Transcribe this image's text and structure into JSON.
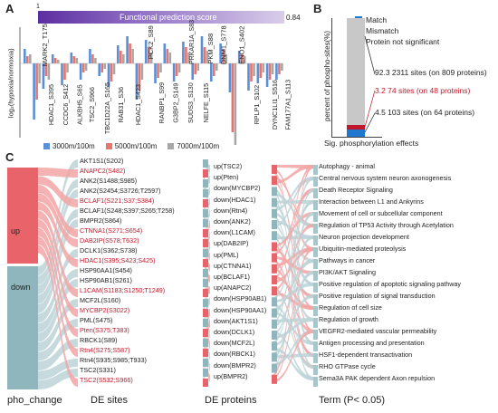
{
  "panelA": {
    "letter": "A",
    "colorbar": {
      "title": "Functional prediction score",
      "min_label": "1",
      "max_label": "0.84",
      "colors": [
        "#5c2da0",
        "#d9cdea"
      ]
    },
    "ylabel": "log₂(hypoxia/normoxia)",
    "legend": [
      {
        "label": "3000m/100m",
        "color": "#5b8fd6"
      },
      {
        "label": "5000m/100m",
        "color": "#e7756e"
      },
      {
        "label": "7000m/100m",
        "color": "#a7a7a7"
      }
    ],
    "top_labels": [
      "MARK2_T175",
      "PCK2_S89",
      "PRKAR1A_S83",
      "PKM_S88",
      "DNM1_S778",
      "ENO1_S402"
    ],
    "bottom_labels": [
      "HDAC1_S395",
      "CCDC6_S412",
      "ALKBH5_S65",
      "TSC2_S966",
      "TBC1D22A_S165",
      "RAB31_S36",
      "HDAC1_S423",
      "RANBP1_S99",
      "G3BP2_S149",
      "SUDS3_S130",
      "NELFE_S115",
      "RPLP1_S102",
      "DYNC1LI1_S516",
      "FAM177A1_S113"
    ]
  },
  "panelB": {
    "letter": "B",
    "ylabel": "percent of phospho-sites(%)",
    "xlabel": "Sig. phosphorylation effects",
    "legend": [
      {
        "label": "Match",
        "color": "#1f77d0"
      },
      {
        "label": "Mismatch",
        "color": "#c0182a"
      },
      {
        "label": "Protein not significant",
        "color": "#c8c8c8"
      }
    ],
    "annotations": [
      {
        "text": "92.3 2311 sites (on 809 proteins)",
        "color": "#222222"
      },
      {
        "text": "3.2 74 sites (on 48 proteins)",
        "color": "#c0182a"
      },
      {
        "text": "4.5 103 sites (on 64 proteins)",
        "color": "#222222"
      }
    ]
  },
  "panelC": {
    "letter": "C",
    "columns": [
      "pho_change",
      "DE sites",
      "DE proteins",
      "Term (P< 0.05)"
    ],
    "change_groups": [
      "up",
      "down"
    ],
    "sites": [
      {
        "label": "AKT1S1(S202)",
        "color": "#222222"
      },
      {
        "label": "ANAPC2(S482)",
        "color": "#c0182a"
      },
      {
        "label": "ANK2(S1488;S985)",
        "color": "#222222"
      },
      {
        "label": "ANK2(S2454;S3726;T2597)",
        "color": "#222222"
      },
      {
        "label": "BCLAF1(S221;S37;S384)",
        "color": "#c0182a"
      },
      {
        "label": "BCLAF1(S248;S397;S265;T258)",
        "color": "#222222"
      },
      {
        "label": "BMPR2(S864)",
        "color": "#222222"
      },
      {
        "label": "CTNNA1(S271;S654)",
        "color": "#c0182a"
      },
      {
        "label": "DAB2IP(S578;T632)",
        "color": "#c0182a"
      },
      {
        "label": "DCLK1(S362;S738)",
        "color": "#222222"
      },
      {
        "label": "HDAC1(S395;S423;S425)",
        "color": "#c0182a"
      },
      {
        "label": "HSP90AA1(S454)",
        "color": "#222222"
      },
      {
        "label": "HSP90AB1(S261)",
        "color": "#222222"
      },
      {
        "label": "L1CAM(S1183;S1250;T1249)",
        "color": "#c0182a"
      },
      {
        "label": "MCF2L(S160)",
        "color": "#222222"
      },
      {
        "label": "MYCBP2(S3022)",
        "color": "#c0182a"
      },
      {
        "label": "PML(S475)",
        "color": "#222222"
      },
      {
        "label": "Pten(S375;T383)",
        "color": "#c0182a"
      },
      {
        "label": "RBCK1(S89)",
        "color": "#222222"
      },
      {
        "label": "Rtn4(S275;S587)",
        "color": "#c0182a"
      },
      {
        "label": "Rtn4(S935;S985;T933)",
        "color": "#222222"
      },
      {
        "label": "TSC2(S331)",
        "color": "#222222"
      },
      {
        "label": "TSC2(S532;S966)",
        "color": "#c0182a"
      }
    ],
    "proteins": [
      "up(TSC2)",
      "up(Pten)",
      "down(MYCBP2)",
      "down(HDAC1)",
      "down(Rtn4)",
      "down(ANK2)",
      "down(L1CAM)",
      "up(DAB2IP)",
      "up(PML)",
      "up(CTNNA1)",
      "up(BCLAF1)",
      "up(ANAPC2)",
      "down(HSP90AB1)",
      "down(HSP90AA1)",
      "down(AKT1S1)",
      "down(DCLK1)",
      "down(MCF2L)",
      "down(RBCK1)",
      "down(BMPR2)",
      "up(BMPR2)"
    ],
    "terms": [
      "Autophagy - animal",
      "Central nervous system neuron axonogenesis",
      "Death Receptor Signaling",
      "Interaction between L1 and Ankyrins",
      "Movement of cell or subcellular component",
      "Regulation of TP53 Activity through Acetylation",
      "Neuron projection development",
      "Ubiquitin-mediated proteolysis",
      "Pathways in cancer",
      "PI3K/AKT Signaling",
      "Positive regulation of apoptotic signaling pathway",
      "Positive regulation of signal transduction",
      "Regulation of cell size",
      "Regulation of growth",
      "VEGFR2-mediated vascular permeability",
      "Antigen processing and presentation",
      "HSF1-dependent transactivation",
      "RHO GTPase cycle",
      "Sema3A PAK dependent Axon repulsion"
    ],
    "colors": {
      "up": "#e8636a",
      "down": "#8fb6bc",
      "up_flow": "#f3a5a5",
      "down_flow": "#bcd4d8"
    }
  }
}
